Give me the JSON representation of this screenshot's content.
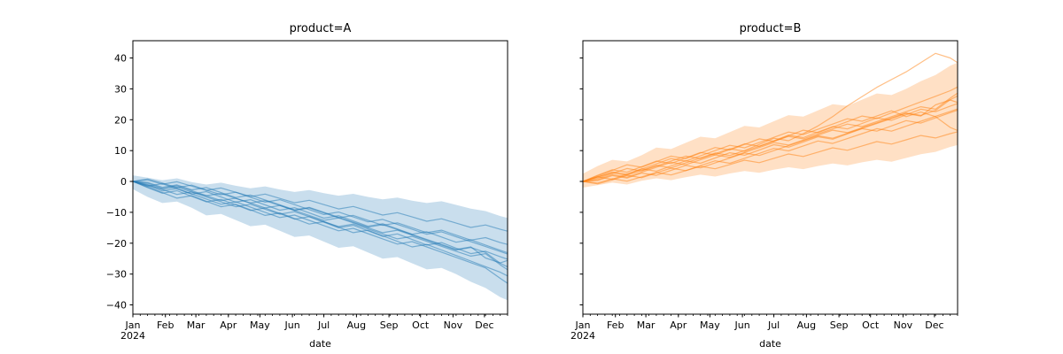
{
  "figure": {
    "background": "#ffffff",
    "spine_color": "#000000",
    "text_color": "#000000"
  },
  "chart_data": [
    {
      "type": "line",
      "title": "product=A",
      "xlabel": "date",
      "legend": "none",
      "grid": false,
      "x_axis": {
        "tick_labels": [
          "Jan",
          "Feb",
          "Mar",
          "Apr",
          "May",
          "Jun",
          "Jul",
          "Aug",
          "Sep",
          "Oct",
          "Nov",
          "Dec"
        ],
        "first_tick_sub_label": "2024",
        "month_start_days": [
          0,
          31,
          60,
          91,
          121,
          152,
          182,
          213,
          244,
          274,
          305,
          335
        ],
        "total_days": 357,
        "minor_tick_interval_days": 7
      },
      "y_axis": {
        "tick_values": [
          -40,
          -30,
          -20,
          -10,
          0,
          10,
          20,
          30,
          40
        ],
        "lim": [
          -43,
          45.6
        ],
        "show_tick_labels": true
      },
      "style": {
        "line_color": "#1f77b4",
        "line_alpha": 0.5,
        "line_width": 1.2,
        "band_color": "#1f77b4",
        "band_alpha": 0.24
      },
      "x_weeks": [
        0,
        2,
        4,
        6,
        8,
        10,
        12,
        14,
        16,
        18,
        20,
        22,
        24,
        26,
        28,
        30,
        32,
        34,
        36,
        38,
        40,
        42,
        44,
        46,
        48,
        50,
        51
      ],
      "band": {
        "upper": [
          2.0,
          1.2,
          0.4,
          1.0,
          -0.2,
          -1.0,
          -0.4,
          -1.4,
          -2.2,
          -1.6,
          -2.6,
          -3.4,
          -2.8,
          -3.8,
          -4.6,
          -4.0,
          -5.0,
          -5.8,
          -5.2,
          -6.2,
          -7.0,
          -6.4,
          -7.6,
          -8.8,
          -9.6,
          -11.2,
          -11.8
        ],
        "lower": [
          -2.5,
          -5.0,
          -7.0,
          -6.5,
          -8.5,
          -11.0,
          -10.5,
          -12.5,
          -14.5,
          -14.0,
          -16.0,
          -18.0,
          -17.5,
          -19.5,
          -21.5,
          -21.0,
          -23.0,
          -25.0,
          -24.5,
          -26.5,
          -28.5,
          -28.0,
          -30.0,
          -32.5,
          -34.5,
          -37.5,
          -38.5
        ]
      },
      "series": [
        [
          0,
          -1.2,
          -2.5,
          -1.8,
          -3.4,
          -4.6,
          -3.9,
          -5.5,
          -7.0,
          -6.2,
          -7.8,
          -9.4,
          -8.6,
          -10.2,
          -11.8,
          -11.0,
          -12.6,
          -14.2,
          -13.4,
          -15.0,
          -16.6,
          -15.8,
          -17.4,
          -19.0,
          -18.2,
          -19.8,
          -20.4
        ],
        [
          0,
          0.8,
          -0.5,
          -2.0,
          -1.2,
          -2.8,
          -4.3,
          -3.5,
          -5.1,
          -6.7,
          -5.9,
          -7.5,
          -9.1,
          -10.7,
          -9.9,
          -11.5,
          -13.1,
          -12.3,
          -13.9,
          -15.5,
          -17.1,
          -16.3,
          -17.9,
          -19.5,
          -21.1,
          -22.7,
          -23.5
        ],
        [
          0,
          -2.0,
          -3.8,
          -3.0,
          -4.8,
          -6.6,
          -5.8,
          -7.6,
          -9.4,
          -8.6,
          -10.4,
          -12.2,
          -11.4,
          -13.2,
          -15.0,
          -14.2,
          -16.0,
          -17.8,
          -17.0,
          -18.8,
          -20.6,
          -19.8,
          -21.6,
          -23.4,
          -22.6,
          -24.4,
          -25.2
        ],
        [
          0,
          -1.5,
          -0.7,
          -2.4,
          -4.1,
          -3.3,
          -5.0,
          -6.7,
          -5.9,
          -7.6,
          -9.3,
          -8.5,
          -10.2,
          -11.9,
          -11.1,
          -12.8,
          -14.5,
          -13.7,
          -15.4,
          -17.1,
          -16.3,
          -18.0,
          -19.7,
          -18.9,
          -20.6,
          -22.3,
          -23.1
        ],
        [
          0,
          -1.8,
          -3.6,
          -5.4,
          -4.6,
          -6.4,
          -8.2,
          -7.4,
          -9.2,
          -11.0,
          -10.2,
          -12.0,
          -13.8,
          -13.0,
          -14.8,
          -16.6,
          -15.8,
          -17.6,
          -19.4,
          -21.2,
          -20.4,
          -22.2,
          -24.0,
          -25.8,
          -27.6,
          -29.4,
          -30.6
        ],
        [
          0,
          -0.6,
          -2.2,
          -1.4,
          -3.0,
          -4.6,
          -6.2,
          -5.4,
          -7.0,
          -8.6,
          -7.8,
          -9.4,
          -11.0,
          -12.6,
          -11.8,
          -13.4,
          -15.0,
          -16.6,
          -15.8,
          -17.4,
          -19.0,
          -20.6,
          -22.2,
          -21.4,
          -23.0,
          -26.5,
          -27.7
        ],
        [
          0,
          0.5,
          -0.9,
          -0.1,
          -1.5,
          -2.9,
          -2.1,
          -3.5,
          -4.9,
          -4.1,
          -5.5,
          -6.9,
          -6.1,
          -7.5,
          -8.9,
          -8.1,
          -9.5,
          -10.9,
          -10.1,
          -11.5,
          -12.9,
          -12.1,
          -13.5,
          -14.9,
          -14.1,
          -15.5,
          -16.1
        ],
        [
          0,
          -1.0,
          -2.6,
          -4.2,
          -3.4,
          -5.0,
          -6.6,
          -8.2,
          -7.4,
          -9.0,
          -10.6,
          -9.8,
          -11.4,
          -13.0,
          -14.6,
          -13.8,
          -15.4,
          -17.0,
          -18.6,
          -17.8,
          -19.4,
          -21.0,
          -22.6,
          -24.2,
          -23.4,
          -27.0,
          -28.6
        ],
        [
          0,
          -0.3,
          -1.9,
          -1.1,
          -2.7,
          -2.0,
          -3.6,
          -5.2,
          -4.4,
          -6.0,
          -7.6,
          -9.2,
          -8.4,
          -10.0,
          -11.6,
          -13.2,
          -14.8,
          -14.0,
          -15.6,
          -17.2,
          -18.8,
          -20.4,
          -22.0,
          -21.2,
          -24.8,
          -26.4,
          -25.6
        ],
        [
          0,
          -1.4,
          -3.1,
          -2.3,
          -4.0,
          -5.7,
          -7.4,
          -6.6,
          -8.3,
          -10.0,
          -11.7,
          -10.9,
          -12.6,
          -14.3,
          -16.0,
          -15.2,
          -16.9,
          -18.6,
          -20.3,
          -19.5,
          -21.2,
          -22.9,
          -24.6,
          -26.3,
          -28.0,
          -31.4,
          -33.0
        ]
      ]
    },
    {
      "type": "line",
      "title": "product=B",
      "xlabel": "date",
      "legend": "none",
      "grid": false,
      "x_axis": {
        "tick_labels": [
          "Jan",
          "Feb",
          "Mar",
          "Apr",
          "May",
          "Jun",
          "Jul",
          "Aug",
          "Sep",
          "Oct",
          "Nov",
          "Dec"
        ],
        "first_tick_sub_label": "2024",
        "month_start_days": [
          0,
          31,
          60,
          91,
          121,
          152,
          182,
          213,
          244,
          274,
          305,
          335
        ],
        "total_days": 357,
        "minor_tick_interval_days": 7
      },
      "y_axis": {
        "tick_values": [
          -40,
          -30,
          -20,
          -10,
          0,
          10,
          20,
          30,
          40
        ],
        "lim": [
          -43,
          45.6
        ],
        "show_tick_labels": false
      },
      "style": {
        "line_color": "#ff7f0e",
        "line_alpha": 0.5,
        "line_width": 1.2,
        "band_color": "#ff7f0e",
        "band_alpha": 0.24
      },
      "x_weeks": [
        0,
        2,
        4,
        6,
        8,
        10,
        12,
        14,
        16,
        18,
        20,
        22,
        24,
        26,
        28,
        30,
        32,
        34,
        36,
        38,
        40,
        42,
        44,
        46,
        48,
        50,
        51
      ],
      "band": {
        "upper": [
          2.5,
          5.0,
          7.0,
          6.5,
          8.5,
          11.0,
          10.5,
          12.5,
          14.5,
          14.0,
          16.0,
          18.0,
          17.5,
          19.5,
          21.5,
          21.0,
          23.0,
          25.0,
          24.5,
          26.5,
          28.5,
          28.0,
          30.0,
          32.5,
          34.5,
          37.5,
          38.5
        ],
        "lower": [
          -2.0,
          -1.2,
          -0.4,
          -1.0,
          0.2,
          1.0,
          0.4,
          1.4,
          2.2,
          1.6,
          2.6,
          3.4,
          2.8,
          3.8,
          4.6,
          4.0,
          5.0,
          5.8,
          5.2,
          6.2,
          7.0,
          6.4,
          7.6,
          8.8,
          9.6,
          11.2,
          11.8
        ]
      },
      "series": [
        [
          0,
          1.5,
          2.8,
          2.0,
          3.6,
          5.2,
          4.4,
          6.0,
          7.6,
          9.2,
          8.4,
          10.0,
          12.0,
          14.0,
          13.2,
          15.5,
          18.0,
          21.0,
          24.5,
          27.5,
          30.5,
          33.0,
          35.5,
          38.5,
          41.5,
          40.0,
          38.5
        ],
        [
          0,
          -0.8,
          0.5,
          2.0,
          1.2,
          2.8,
          4.3,
          3.5,
          5.1,
          6.7,
          5.9,
          7.5,
          9.1,
          10.7,
          9.9,
          11.5,
          13.1,
          12.3,
          13.9,
          15.5,
          17.1,
          16.3,
          17.9,
          19.5,
          21.1,
          22.7,
          23.5
        ],
        [
          0,
          2.0,
          3.8,
          3.0,
          4.8,
          6.6,
          5.8,
          7.6,
          9.4,
          8.6,
          10.4,
          12.2,
          11.4,
          13.2,
          15.0,
          14.2,
          16.0,
          17.8,
          17.0,
          18.8,
          20.6,
          19.8,
          21.6,
          23.4,
          22.6,
          24.4,
          25.2
        ],
        [
          0,
          1.5,
          0.7,
          2.4,
          4.1,
          3.3,
          5.0,
          6.7,
          5.9,
          7.6,
          9.3,
          8.5,
          10.2,
          11.9,
          11.1,
          12.8,
          14.5,
          13.7,
          15.4,
          17.1,
          16.3,
          18.0,
          19.7,
          18.9,
          20.6,
          22.3,
          23.1
        ],
        [
          0,
          1.8,
          3.6,
          5.4,
          4.6,
          6.4,
          8.2,
          7.4,
          9.2,
          11.0,
          10.2,
          12.0,
          13.8,
          13.0,
          14.8,
          16.6,
          15.8,
          17.6,
          19.4,
          21.2,
          20.4,
          22.2,
          24.0,
          25.8,
          27.6,
          29.4,
          30.6
        ],
        [
          0,
          0.6,
          2.2,
          1.4,
          3.0,
          4.6,
          6.2,
          5.4,
          7.0,
          8.6,
          7.8,
          9.4,
          11.0,
          12.6,
          11.8,
          13.4,
          15.0,
          16.6,
          15.8,
          17.4,
          19.0,
          20.6,
          22.2,
          21.4,
          23.0,
          26.5,
          27.7
        ],
        [
          0,
          -0.5,
          0.9,
          0.1,
          1.5,
          2.9,
          2.1,
          3.5,
          4.9,
          4.1,
          5.5,
          6.9,
          6.1,
          7.5,
          8.9,
          8.1,
          9.5,
          10.9,
          10.1,
          11.5,
          12.9,
          12.1,
          13.5,
          14.9,
          14.1,
          15.5,
          16.1
        ],
        [
          0,
          1.0,
          2.6,
          4.2,
          3.4,
          5.0,
          6.6,
          8.2,
          7.4,
          9.0,
          10.6,
          9.8,
          11.4,
          13.0,
          14.6,
          13.8,
          15.4,
          17.0,
          18.6,
          17.8,
          19.4,
          21.0,
          22.6,
          24.2,
          23.4,
          27.0,
          28.6
        ],
        [
          0,
          0.3,
          1.9,
          1.1,
          2.7,
          2.0,
          3.6,
          5.2,
          4.4,
          6.0,
          7.6,
          9.2,
          8.4,
          10.0,
          11.6,
          13.2,
          14.8,
          14.0,
          15.6,
          17.2,
          18.8,
          20.4,
          22.0,
          21.2,
          24.8,
          26.4,
          25.6
        ],
        [
          0,
          1.4,
          3.1,
          2.3,
          4.0,
          5.7,
          7.4,
          6.6,
          8.3,
          10.0,
          11.7,
          10.9,
          12.6,
          14.3,
          16.0,
          15.2,
          16.9,
          18.6,
          20.3,
          19.5,
          21.2,
          22.9,
          21.0,
          22.5,
          21.0,
          17.5,
          16.5
        ]
      ]
    }
  ]
}
